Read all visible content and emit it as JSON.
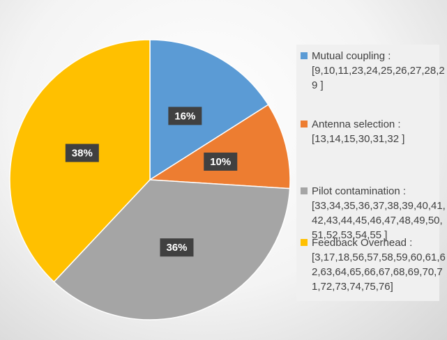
{
  "chart_data": {
    "type": "pie",
    "categories": [
      "Mutual coupling : [9,10,11,23,24,25,26,27,28,29 ]",
      "Antenna selection : [13,14,15,30,31,32 ]",
      "Pilot contamination : [33,34,35,36,37,38,39,40,41,42,43,44,45,46,47,48,49,50,51,52,53,54,55 ]",
      "Feedback Overhead : [3,17,18,56,57,58,59,60,61,62,63,64,65,66,67,68,69,70,71,72,73,74,75,76]"
    ],
    "values": [
      16,
      10,
      36,
      38
    ],
    "value_labels": [
      "16%",
      "10%",
      "36%",
      "38%"
    ],
    "colors": [
      "#5b9bd5",
      "#ed7d31",
      "#a5a5a5",
      "#ffc000"
    ]
  }
}
